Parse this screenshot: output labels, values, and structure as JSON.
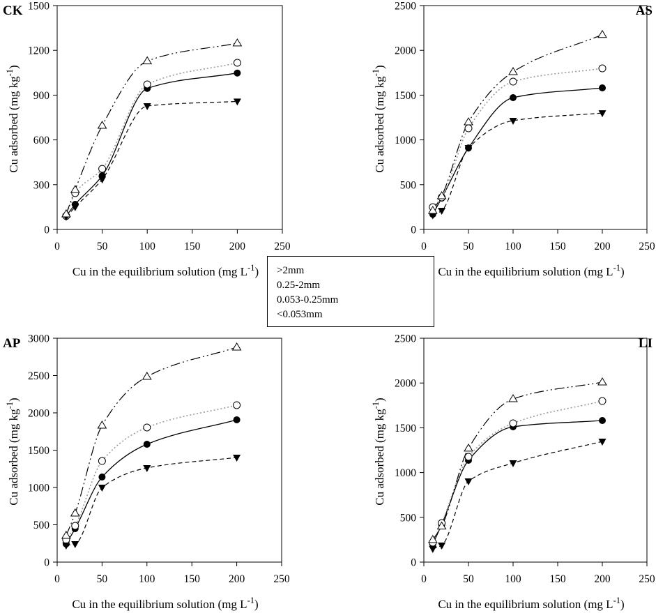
{
  "legend": {
    "items": [
      ">2mm",
      "0.25-2mm",
      "0.053-0.25mm",
      "<0.053mm"
    ]
  },
  "chart_data": [
    {
      "type": "scatter",
      "title": "CK",
      "xlabel": {
        "text": "Cu in the equilibrium solution (mg L",
        "sup": "-1",
        "tail": ")"
      },
      "ylabel": {
        "text": "Cu adsorbed (mg kg",
        "sup": "-1",
        "tail": ")"
      },
      "xlim": [
        0,
        250
      ],
      "ylim": [
        0,
        1500
      ],
      "xticks": [
        0,
        50,
        100,
        150,
        200,
        250
      ],
      "yticks": [
        0,
        300,
        600,
        900,
        1200,
        1500
      ],
      "series": [
        {
          "name": ">2mm",
          "x": [
            10,
            20,
            50,
            100,
            200
          ],
          "y": [
            90,
            168,
            360,
            945,
            1048
          ]
        },
        {
          "name": "0.25-2mm",
          "x": [
            10,
            20,
            50,
            100,
            200
          ],
          "y": [
            90,
            243,
            406,
            972,
            1117
          ]
        },
        {
          "name": "0.053-0.25mm",
          "x": [
            10,
            20,
            50,
            100,
            200
          ],
          "y": [
            85,
            150,
            336,
            827,
            858
          ]
        },
        {
          "name": "<0.053mm",
          "x": [
            10,
            20,
            50,
            100,
            200
          ],
          "y": [
            103,
            266,
            696,
            1128,
            1248
          ]
        }
      ]
    },
    {
      "type": "scatter",
      "title": "AS",
      "xlabel": {
        "text": "Cu in the equilibrium solution (mg L",
        "sup": "-1",
        "tail": ")"
      },
      "ylabel": {
        "text": "Cu adsorbed (mg kg",
        "sup": "-1",
        "tail": ")"
      },
      "xlim": [
        0,
        250
      ],
      "ylim": [
        0,
        2500
      ],
      "xticks": [
        0,
        50,
        100,
        150,
        200,
        250
      ],
      "yticks": [
        0,
        500,
        1000,
        1500,
        2000,
        2500
      ],
      "series": [
        {
          "name": ">2mm",
          "x": [
            10,
            20,
            50,
            100,
            200
          ],
          "y": [
            170,
            350,
            910,
            1472,
            1581
          ]
        },
        {
          "name": "0.25-2mm",
          "x": [
            10,
            20,
            50,
            100,
            200
          ],
          "y": [
            249,
            358,
            1129,
            1651,
            1799
          ]
        },
        {
          "name": "0.053-0.25mm",
          "x": [
            10,
            20,
            50,
            100,
            200
          ],
          "y": [
            160,
            210,
            910,
            1215,
            1300
          ]
        },
        {
          "name": "<0.053mm",
          "x": [
            10,
            20,
            50,
            100,
            200
          ],
          "y": [
            210,
            374,
            1199,
            1760,
            2175
          ]
        }
      ]
    },
    {
      "type": "scatter",
      "title": "AP",
      "xlabel": {
        "text": "Cu in the equilibrium solution (mg L",
        "sup": "-1",
        "tail": ")"
      },
      "ylabel": {
        "text": "Cu adsorbed (mg kg",
        "sup": "-1",
        "tail": ")"
      },
      "xlim": [
        0,
        250
      ],
      "ylim": [
        0,
        3000
      ],
      "xticks": [
        0,
        50,
        100,
        150,
        200,
        250
      ],
      "yticks": [
        0,
        500,
        1000,
        1500,
        2000,
        2500,
        3000
      ],
      "series": [
        {
          "name": ">2mm",
          "x": [
            10,
            20,
            50,
            100,
            200
          ],
          "y": [
            243,
            449,
            1140,
            1579,
            1907
          ]
        },
        {
          "name": "0.25-2mm",
          "x": [
            10,
            20,
            50,
            100,
            200
          ],
          "y": [
            299,
            486,
            1355,
            1804,
            2103
          ]
        },
        {
          "name": "0.053-0.25mm",
          "x": [
            10,
            20,
            50,
            100,
            200
          ],
          "y": [
            224,
            243,
            1000,
            1262,
            1402
          ]
        },
        {
          "name": "<0.053mm",
          "x": [
            10,
            20,
            50,
            100,
            200
          ],
          "y": [
            355,
            654,
            1832,
            2486,
            2879
          ]
        }
      ]
    },
    {
      "type": "scatter",
      "title": "LI",
      "xlabel": {
        "text": "Cu in the equilibrium solution (mg L",
        "sup": "-1",
        "tail": ")"
      },
      "ylabel": {
        "text": "Cu adsorbed (mg kg",
        "sup": "-1",
        "tail": ")"
      },
      "xlim": [
        0,
        250
      ],
      "ylim": [
        0,
        2500
      ],
      "xticks": [
        0,
        50,
        100,
        150,
        200,
        250
      ],
      "yticks": [
        0,
        500,
        1000,
        1500,
        2000,
        2500
      ],
      "series": [
        {
          "name": ">2mm",
          "x": [
            10,
            20,
            50,
            100,
            200
          ],
          "y": [
            200,
            420,
            1137,
            1511,
            1581
          ]
        },
        {
          "name": "0.25-2mm",
          "x": [
            10,
            20,
            50,
            100,
            200
          ],
          "y": [
            218,
            436,
            1176,
            1550,
            1799
          ]
        },
        {
          "name": "0.053-0.25mm",
          "x": [
            10,
            20,
            50,
            100,
            200
          ],
          "y": [
            148,
            187,
            903,
            1106,
            1347
          ]
        },
        {
          "name": "<0.053mm",
          "x": [
            10,
            20,
            50,
            100,
            200
          ],
          "y": [
            249,
            400,
            1270,
            1822,
            2009
          ]
        }
      ]
    }
  ]
}
